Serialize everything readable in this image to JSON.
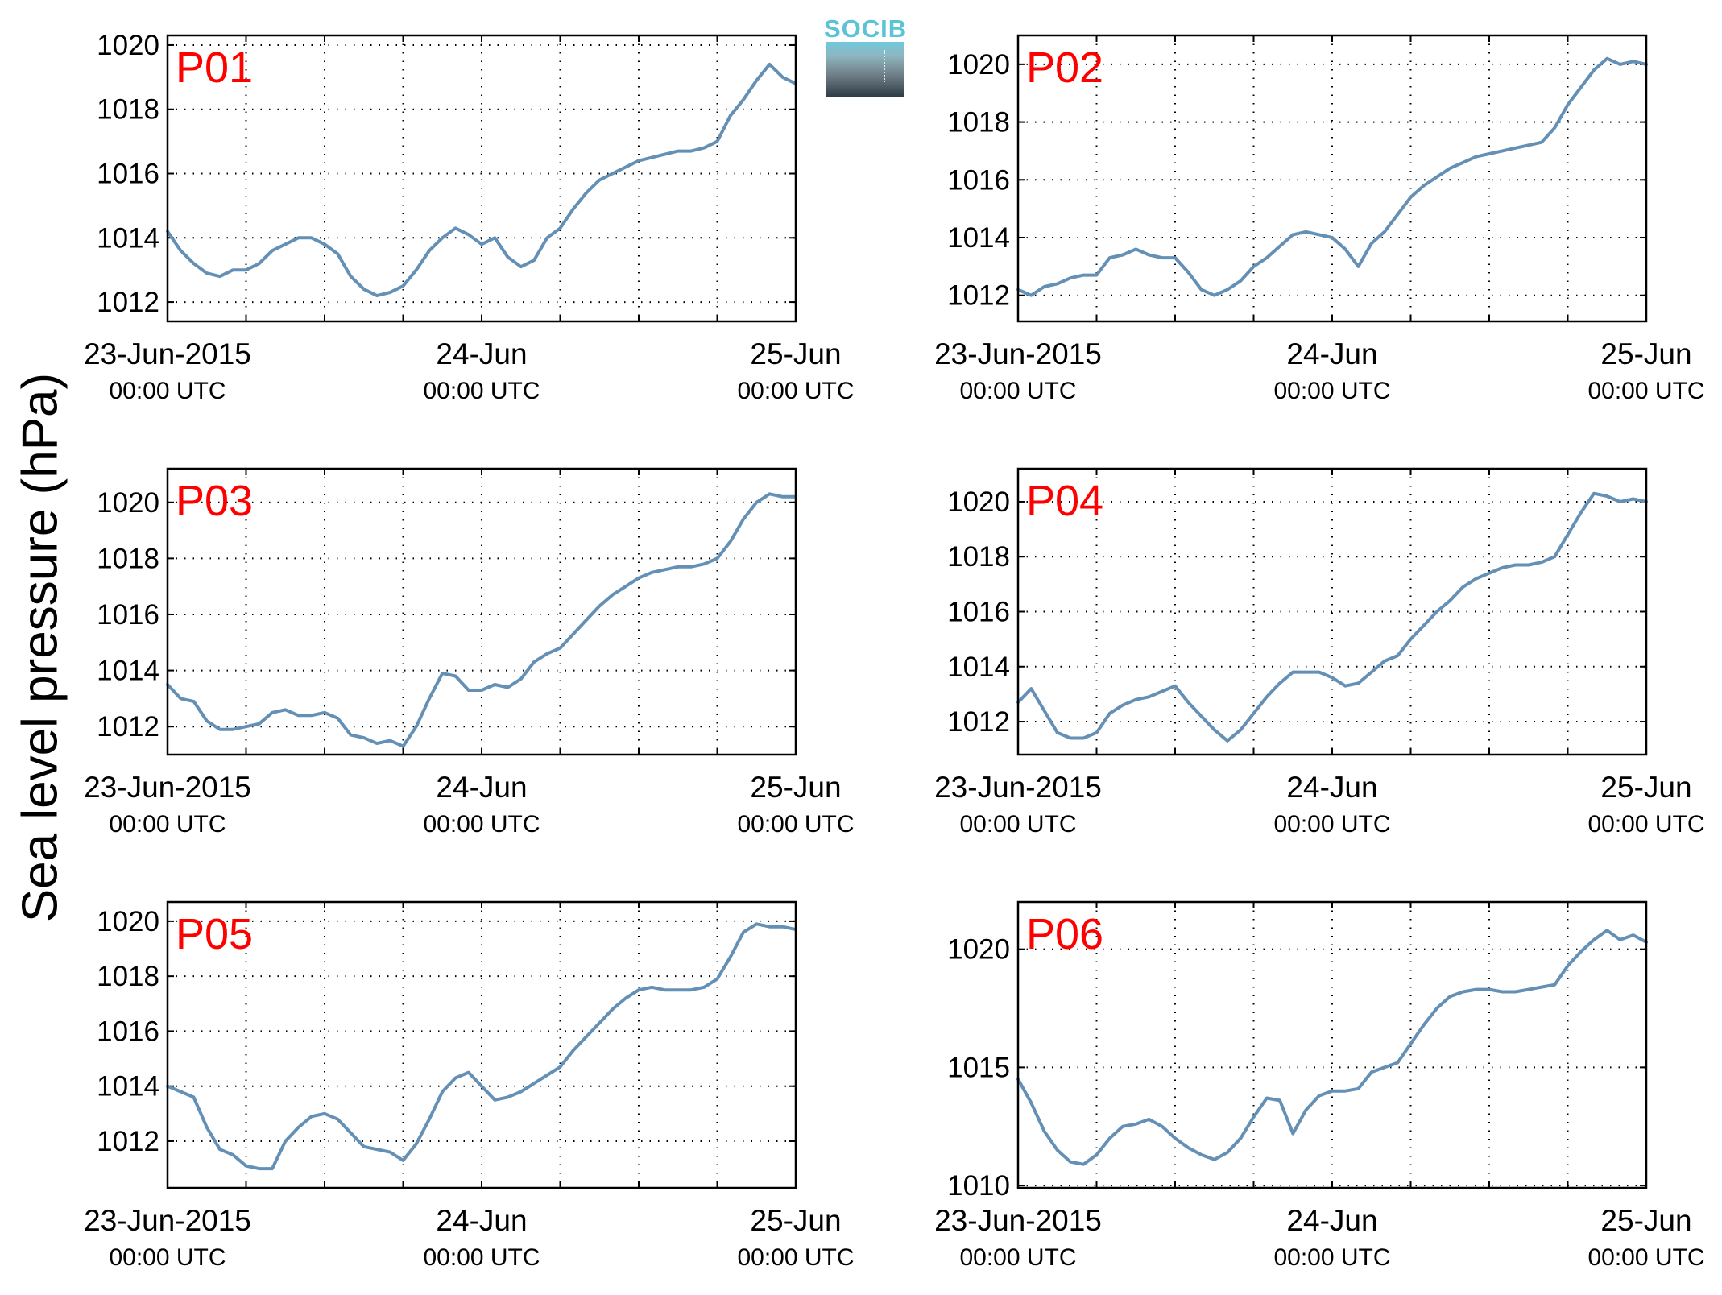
{
  "ylabel": "Sea level pressure (hPa)",
  "logo": {
    "text": "SOCIB"
  },
  "colors": {
    "line": "#6490b6",
    "station_label": "#ff0000",
    "axis": "#000000"
  },
  "x_ticks": [
    {
      "date": "23-Jun-2015",
      "time": "00:00 UTC"
    },
    {
      "date": "24-Jun",
      "time": "00:00 UTC"
    },
    {
      "date": "25-Jun",
      "time": "00:00 UTC"
    }
  ],
  "chart_data": [
    {
      "type": "line",
      "title": "P01",
      "x_unit": "hours since 23-Jun-2015 00:00 UTC",
      "xlim": [
        0,
        48
      ],
      "ylim": [
        1011.4,
        1020.3
      ],
      "yticks": [
        1012,
        1014,
        1016,
        1018,
        1020
      ],
      "grid": true,
      "series": [
        {
          "x": [
            0,
            1,
            2,
            3,
            4,
            5,
            6,
            7,
            8,
            9,
            10,
            11,
            12,
            13,
            14,
            15,
            16,
            17,
            18,
            19,
            20,
            21,
            22,
            23,
            24,
            25,
            26,
            27,
            28,
            29,
            30,
            31,
            32,
            33,
            34,
            35,
            36,
            37,
            38,
            39,
            40,
            41,
            42,
            43,
            44,
            45,
            46,
            47,
            48
          ],
          "y": [
            1014.2,
            1013.6,
            1013.2,
            1012.9,
            1012.8,
            1013.0,
            1013.0,
            1013.2,
            1013.6,
            1013.8,
            1014.0,
            1014.0,
            1013.8,
            1013.5,
            1012.8,
            1012.4,
            1012.2,
            1012.3,
            1012.5,
            1013.0,
            1013.6,
            1014.0,
            1014.3,
            1014.1,
            1013.8,
            1014.0,
            1013.4,
            1013.1,
            1013.3,
            1014.0,
            1014.3,
            1014.9,
            1015.4,
            1015.8,
            1016.0,
            1016.2,
            1016.4,
            1016.5,
            1016.6,
            1016.7,
            1016.7,
            1016.8,
            1017.0,
            1017.8,
            1018.3,
            1018.9,
            1019.4,
            1019.0,
            1018.8
          ]
        }
      ]
    },
    {
      "type": "line",
      "title": "P02",
      "x_unit": "hours since 23-Jun-2015 00:00 UTC",
      "xlim": [
        0,
        48
      ],
      "ylim": [
        1011.1,
        1021.0
      ],
      "yticks": [
        1012,
        1014,
        1016,
        1018,
        1020
      ],
      "grid": true,
      "series": [
        {
          "x": [
            0,
            1,
            2,
            3,
            4,
            5,
            6,
            7,
            8,
            9,
            10,
            11,
            12,
            13,
            14,
            15,
            16,
            17,
            18,
            19,
            20,
            21,
            22,
            23,
            24,
            25,
            26,
            27,
            28,
            29,
            30,
            31,
            32,
            33,
            34,
            35,
            36,
            37,
            38,
            39,
            40,
            41,
            42,
            43,
            44,
            45,
            46,
            47,
            48
          ],
          "y": [
            1012.2,
            1012.0,
            1012.3,
            1012.4,
            1012.6,
            1012.7,
            1012.7,
            1013.3,
            1013.4,
            1013.6,
            1013.4,
            1013.3,
            1013.3,
            1012.8,
            1012.2,
            1012.0,
            1012.2,
            1012.5,
            1013.0,
            1013.3,
            1013.7,
            1014.1,
            1014.2,
            1014.1,
            1014.0,
            1013.6,
            1013.0,
            1013.8,
            1014.2,
            1014.8,
            1015.4,
            1015.8,
            1016.1,
            1016.4,
            1016.6,
            1016.8,
            1016.9,
            1017.0,
            1017.1,
            1017.2,
            1017.3,
            1017.8,
            1018.6,
            1019.2,
            1019.8,
            1020.2,
            1020.0,
            1020.1,
            1020.0
          ]
        }
      ]
    },
    {
      "type": "line",
      "title": "P03",
      "x_unit": "hours since 23-Jun-2015 00:00 UTC",
      "xlim": [
        0,
        48
      ],
      "ylim": [
        1011.0,
        1021.2
      ],
      "yticks": [
        1012,
        1014,
        1016,
        1018,
        1020
      ],
      "grid": true,
      "series": [
        {
          "x": [
            0,
            1,
            2,
            3,
            4,
            5,
            6,
            7,
            8,
            9,
            10,
            11,
            12,
            13,
            14,
            15,
            16,
            17,
            18,
            19,
            20,
            21,
            22,
            23,
            24,
            25,
            26,
            27,
            28,
            29,
            30,
            31,
            32,
            33,
            34,
            35,
            36,
            37,
            38,
            39,
            40,
            41,
            42,
            43,
            44,
            45,
            46,
            47,
            48
          ],
          "y": [
            1013.5,
            1013.0,
            1012.9,
            1012.2,
            1011.9,
            1011.9,
            1012.0,
            1012.1,
            1012.5,
            1012.6,
            1012.4,
            1012.4,
            1012.5,
            1012.3,
            1011.7,
            1011.6,
            1011.4,
            1011.5,
            1011.3,
            1012.0,
            1013.0,
            1013.9,
            1013.8,
            1013.3,
            1013.3,
            1013.5,
            1013.4,
            1013.7,
            1014.3,
            1014.6,
            1014.8,
            1015.3,
            1015.8,
            1016.3,
            1016.7,
            1017.0,
            1017.3,
            1017.5,
            1017.6,
            1017.7,
            1017.7,
            1017.8,
            1018.0,
            1018.6,
            1019.4,
            1020.0,
            1020.3,
            1020.2,
            1020.2
          ]
        }
      ]
    },
    {
      "type": "line",
      "title": "P04",
      "x_unit": "hours since 23-Jun-2015 00:00 UTC",
      "xlim": [
        0,
        48
      ],
      "ylim": [
        1010.8,
        1021.2
      ],
      "yticks": [
        1012,
        1014,
        1016,
        1018,
        1020
      ],
      "grid": true,
      "series": [
        {
          "x": [
            0,
            1,
            2,
            3,
            4,
            5,
            6,
            7,
            8,
            9,
            10,
            11,
            12,
            13,
            14,
            15,
            16,
            17,
            18,
            19,
            20,
            21,
            22,
            23,
            24,
            25,
            26,
            27,
            28,
            29,
            30,
            31,
            32,
            33,
            34,
            35,
            36,
            37,
            38,
            39,
            40,
            41,
            42,
            43,
            44,
            45,
            46,
            47,
            48
          ],
          "y": [
            1012.7,
            1013.2,
            1012.4,
            1011.6,
            1011.4,
            1011.4,
            1011.6,
            1012.3,
            1012.6,
            1012.8,
            1012.9,
            1013.1,
            1013.3,
            1012.7,
            1012.2,
            1011.7,
            1011.3,
            1011.7,
            1012.3,
            1012.9,
            1013.4,
            1013.8,
            1013.8,
            1013.8,
            1013.6,
            1013.3,
            1013.4,
            1013.8,
            1014.2,
            1014.4,
            1015.0,
            1015.5,
            1016.0,
            1016.4,
            1016.9,
            1017.2,
            1017.4,
            1017.6,
            1017.7,
            1017.7,
            1017.8,
            1018.0,
            1018.8,
            1019.6,
            1020.3,
            1020.2,
            1020.0,
            1020.1,
            1020.0
          ]
        }
      ]
    },
    {
      "type": "line",
      "title": "P05",
      "x_unit": "hours since 23-Jun-2015 00:00 UTC",
      "xlim": [
        0,
        48
      ],
      "ylim": [
        1010.3,
        1020.7
      ],
      "yticks": [
        1012,
        1014,
        1016,
        1018,
        1020
      ],
      "grid": true,
      "series": [
        {
          "x": [
            0,
            1,
            2,
            3,
            4,
            5,
            6,
            7,
            8,
            9,
            10,
            11,
            12,
            13,
            14,
            15,
            16,
            17,
            18,
            19,
            20,
            21,
            22,
            23,
            24,
            25,
            26,
            27,
            28,
            29,
            30,
            31,
            32,
            33,
            34,
            35,
            36,
            37,
            38,
            39,
            40,
            41,
            42,
            43,
            44,
            45,
            46,
            47,
            48
          ],
          "y": [
            1014.0,
            1013.8,
            1013.6,
            1012.5,
            1011.7,
            1011.5,
            1011.1,
            1011.0,
            1011.0,
            1012.0,
            1012.5,
            1012.9,
            1013.0,
            1012.8,
            1012.3,
            1011.8,
            1011.7,
            1011.6,
            1011.3,
            1011.9,
            1012.8,
            1013.8,
            1014.3,
            1014.5,
            1014.0,
            1013.5,
            1013.6,
            1013.8,
            1014.1,
            1014.4,
            1014.7,
            1015.3,
            1015.8,
            1016.3,
            1016.8,
            1017.2,
            1017.5,
            1017.6,
            1017.5,
            1017.5,
            1017.5,
            1017.6,
            1017.9,
            1018.7,
            1019.6,
            1019.9,
            1019.8,
            1019.8,
            1019.7
          ]
        }
      ]
    },
    {
      "type": "line",
      "title": "P06",
      "x_unit": "hours since 23-Jun-2015 00:00 UTC",
      "xlim": [
        0,
        48
      ],
      "ylim": [
        1009.9,
        1022.0
      ],
      "yticks": [
        1010,
        1015,
        1020
      ],
      "grid": true,
      "series": [
        {
          "x": [
            0,
            1,
            2,
            3,
            4,
            5,
            6,
            7,
            8,
            9,
            10,
            11,
            12,
            13,
            14,
            15,
            16,
            17,
            18,
            19,
            20,
            21,
            22,
            23,
            24,
            25,
            26,
            27,
            28,
            29,
            30,
            31,
            32,
            33,
            34,
            35,
            36,
            37,
            38,
            39,
            40,
            41,
            42,
            43,
            44,
            45,
            46,
            47,
            48
          ],
          "y": [
            1014.5,
            1013.5,
            1012.3,
            1011.5,
            1011.0,
            1010.9,
            1011.3,
            1012.0,
            1012.5,
            1012.6,
            1012.8,
            1012.5,
            1012.0,
            1011.6,
            1011.3,
            1011.1,
            1011.4,
            1012.0,
            1012.9,
            1013.7,
            1013.6,
            1012.2,
            1013.2,
            1013.8,
            1014.0,
            1014.0,
            1014.1,
            1014.8,
            1015.0,
            1015.2,
            1016.0,
            1016.8,
            1017.5,
            1018.0,
            1018.2,
            1018.3,
            1018.3,
            1018.2,
            1018.2,
            1018.3,
            1018.4,
            1018.5,
            1019.3,
            1019.9,
            1020.4,
            1020.8,
            1020.4,
            1020.6,
            1020.3
          ]
        }
      ]
    }
  ]
}
